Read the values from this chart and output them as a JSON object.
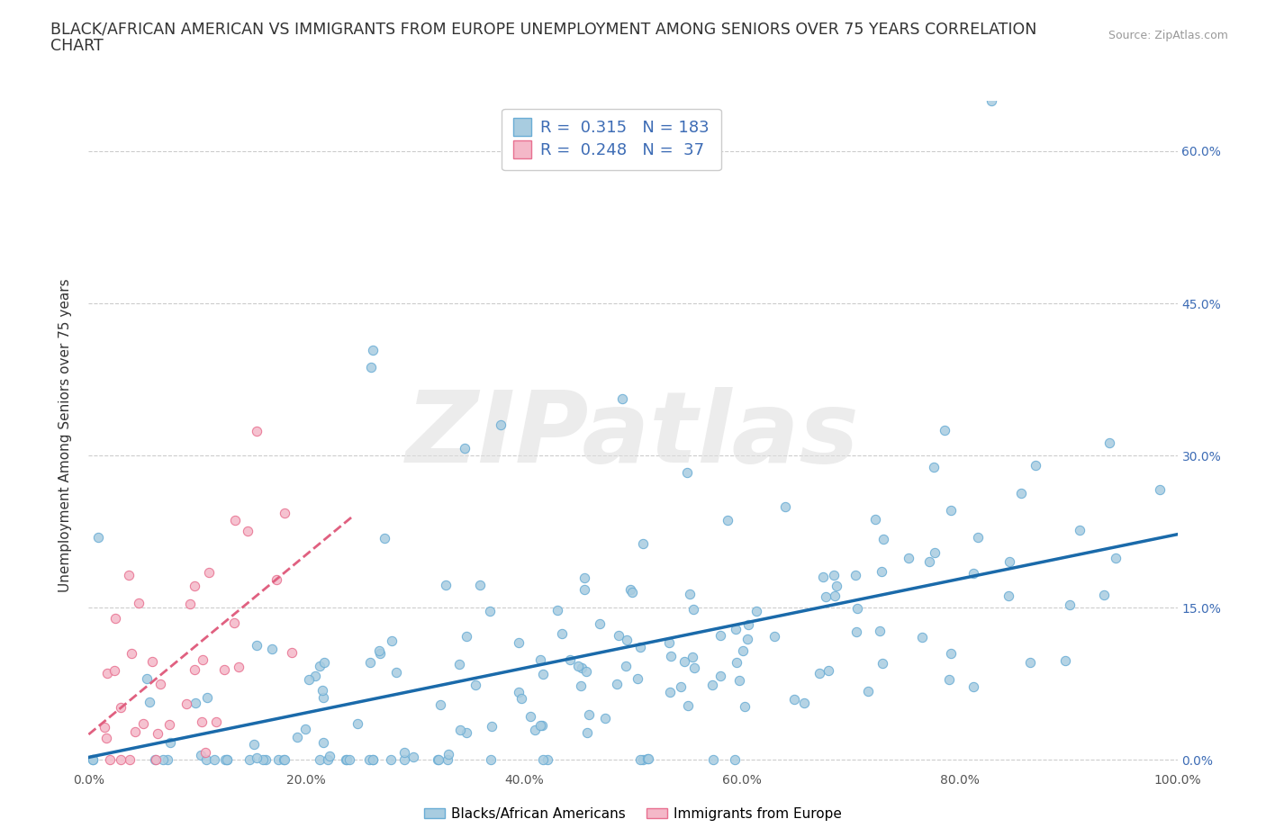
{
  "title_line1": "BLACK/AFRICAN AMERICAN VS IMMIGRANTS FROM EUROPE UNEMPLOYMENT AMONG SENIORS OVER 75 YEARS CORRELATION",
  "title_line2": "CHART",
  "source": "Source: ZipAtlas.com",
  "ylabel": "Unemployment Among Seniors over 75 years",
  "xlim": [
    0,
    1.0
  ],
  "ylim": [
    -0.01,
    0.65
  ],
  "xticks": [
    0.0,
    0.2,
    0.4,
    0.6,
    0.8,
    1.0
  ],
  "xtick_labels": [
    "0.0%",
    "20.0%",
    "40.0%",
    "60.0%",
    "80.0%",
    "100.0%"
  ],
  "yticks": [
    0.0,
    0.15,
    0.3,
    0.45,
    0.6
  ],
  "ytick_labels": [
    "0.0%",
    "15.0%",
    "30.0%",
    "45.0%",
    "60.0%"
  ],
  "blue_scatter_color": "#a8cce0",
  "pink_scatter_color": "#f4b8c8",
  "blue_scatter_edge": "#6aadd5",
  "pink_scatter_edge": "#e87090",
  "blue_line_color": "#1a6aaa",
  "pink_line_color": "#e06080",
  "right_axis_color": "#3d6cb5",
  "r1": 0.315,
  "n1": 183,
  "r2": 0.248,
  "n2": 37,
  "watermark": "ZIPatlas",
  "legend1": "Blacks/African Americans",
  "legend2": "Immigrants from Europe",
  "background_color": "#ffffff",
  "grid_color": "#cccccc",
  "title_fontsize": 12.5,
  "axis_label_fontsize": 11,
  "tick_fontsize": 10,
  "legend_fontsize": 13,
  "seed": 42
}
